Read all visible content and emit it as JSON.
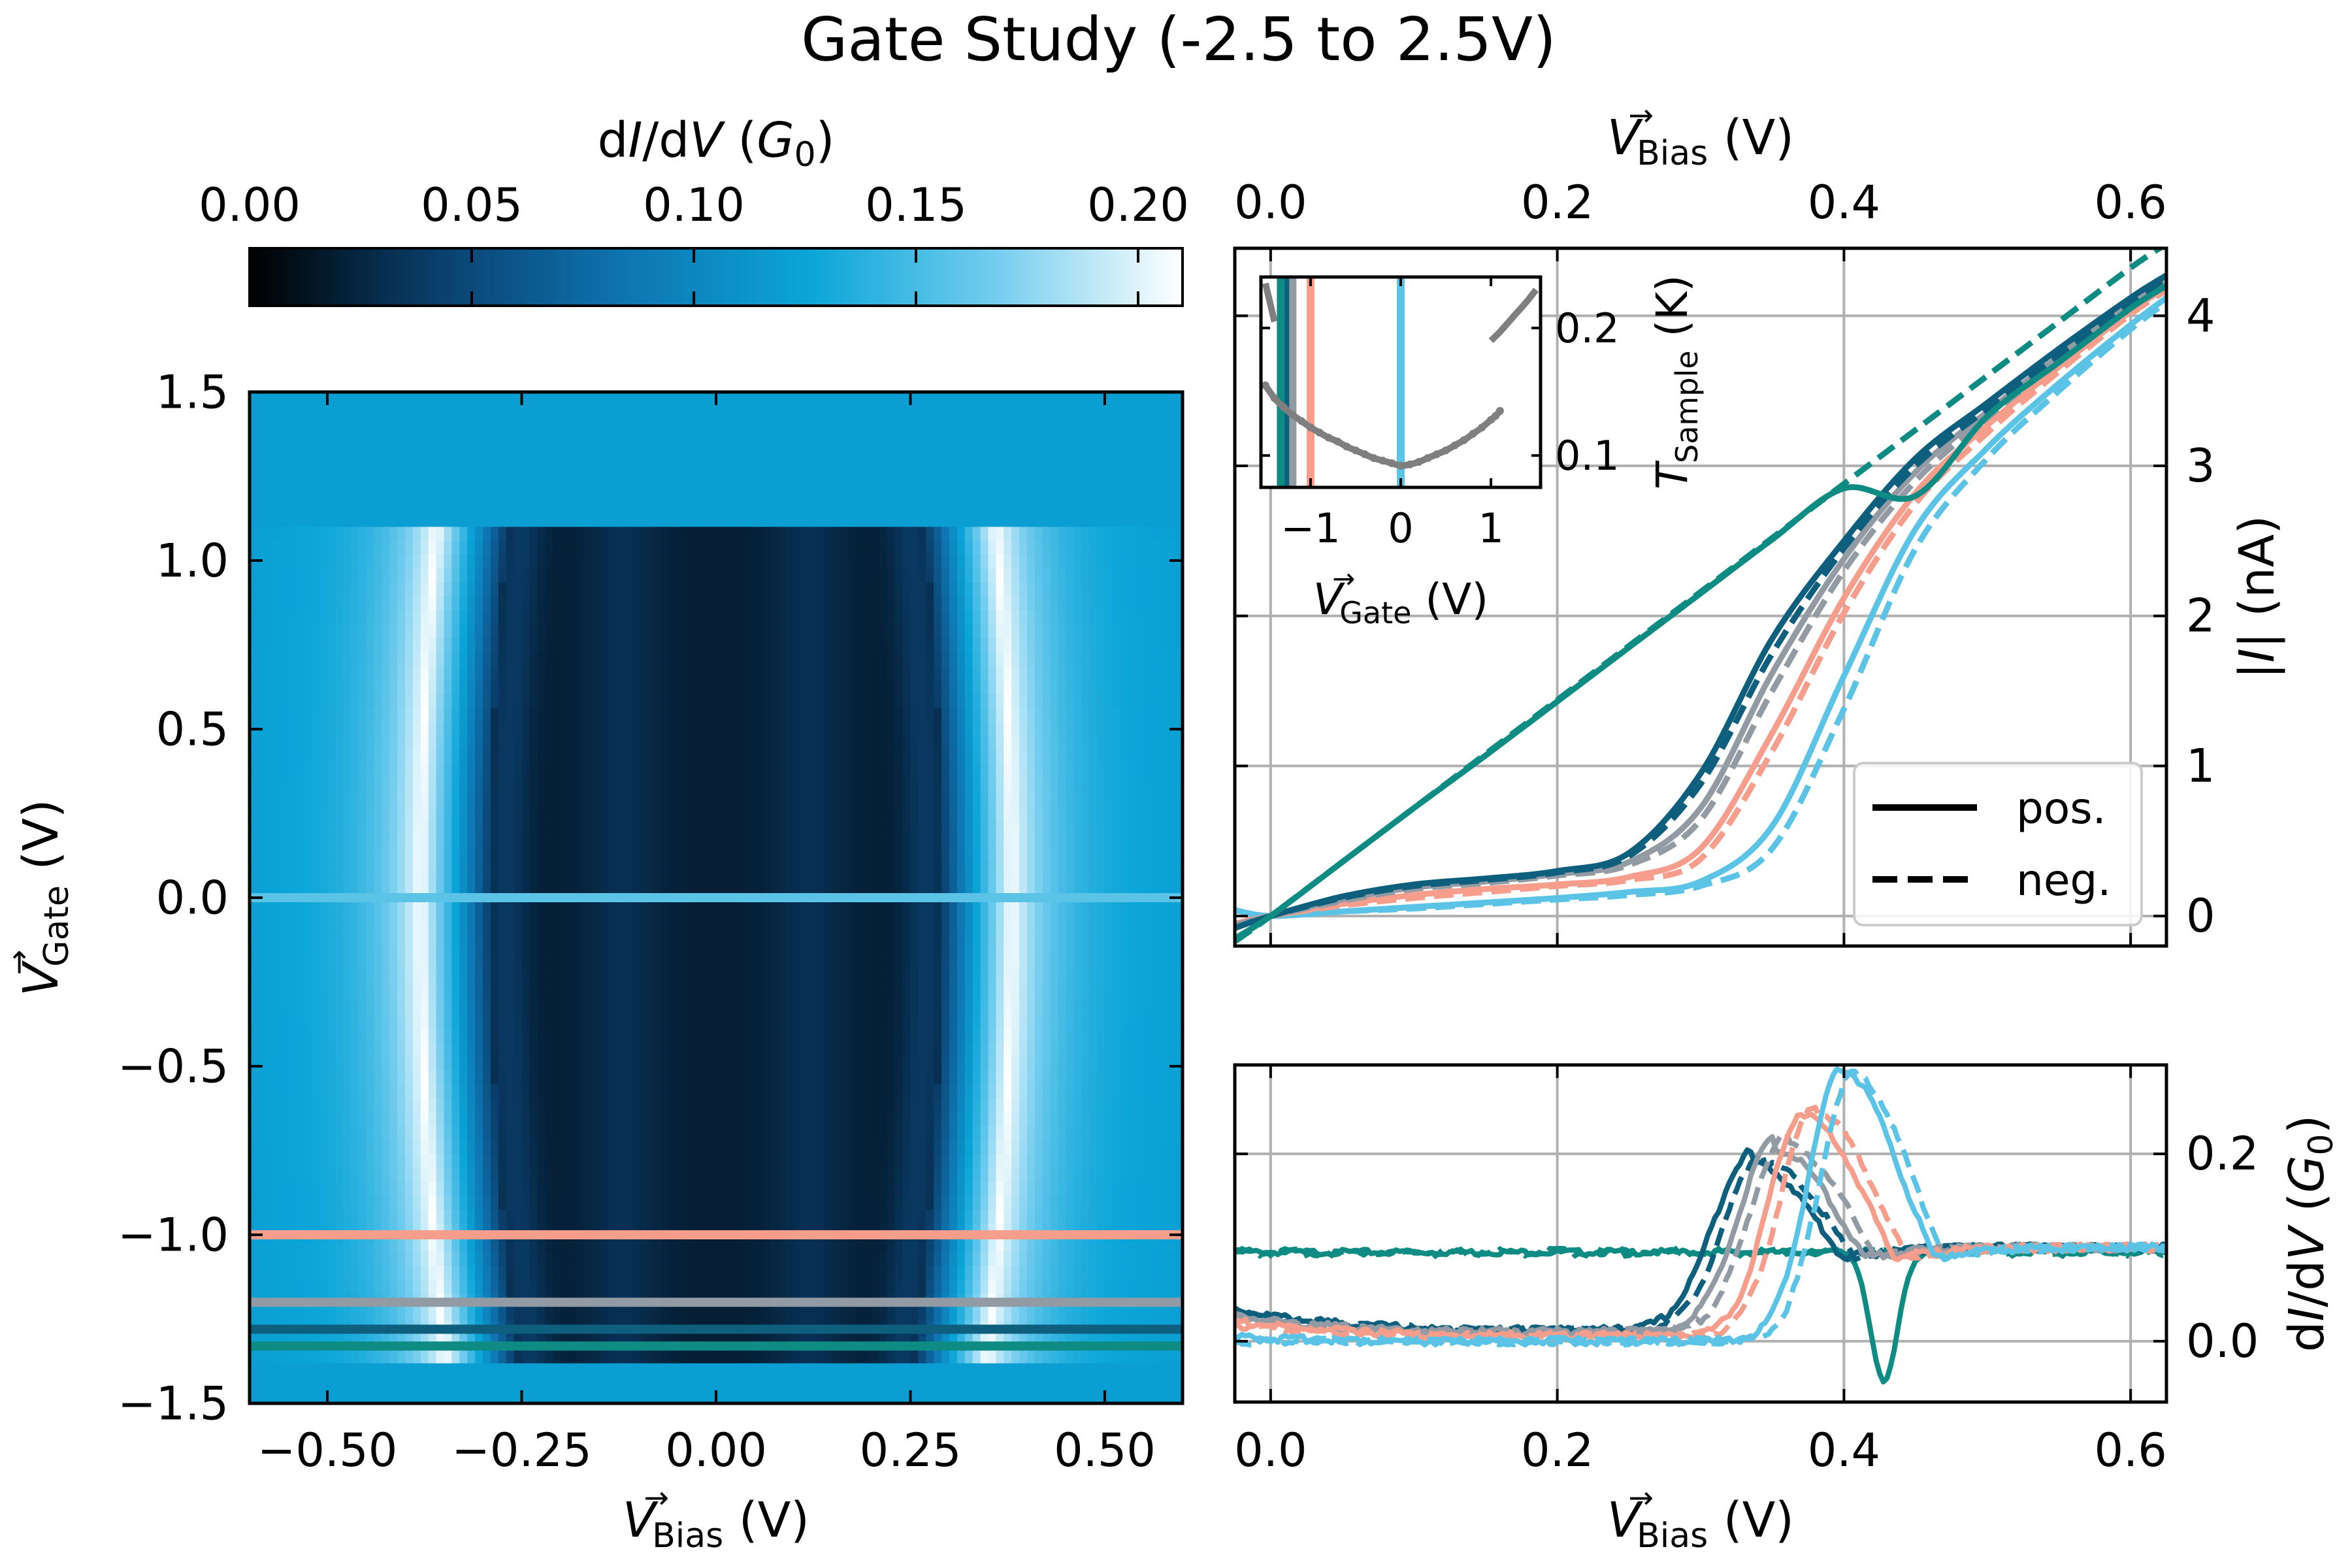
{
  "figure": {
    "title": "Gate Study (-2.5 to 2.5V)"
  },
  "colors": {
    "teal": "#0e8c84",
    "dark_blue": "#0d5f7d",
    "gray": "#929aa3",
    "salmon": "#f79d8b",
    "light_blue": "#5bc3e6",
    "inset_gray": "#7f7f7f",
    "grid": "#b0b0b0"
  },
  "colorbar": {
    "label_math": {
      "d1": "d",
      "i1": "I",
      "s": "/d",
      "v": "V",
      "p1": " (",
      "g": "G",
      "sub": "0",
      "p2": ")"
    },
    "ticks": [
      "0.00",
      "0.05",
      "0.10",
      "0.15",
      "0.20"
    ],
    "range": [
      0,
      0.21
    ],
    "colormap": [
      "#000000",
      "#0a3f6c",
      "#0e74b0",
      "#0ba5d8",
      "#74cdee",
      "#ffffff"
    ]
  },
  "chart_data": [
    {
      "id": "heatmap",
      "type": "heatmap",
      "xlabel": {
        "v": "V",
        "arrow": "→",
        "sub": "Bias",
        "unit": " (V)"
      },
      "ylabel": {
        "v": "V",
        "arrow": "→",
        "sub": "Gate",
        "unit": " (V)"
      },
      "xlim": [
        -0.6,
        0.6
      ],
      "ylim": [
        -1.5,
        1.5
      ],
      "xticks": [
        {
          "v": -0.5,
          "label": "−0.50"
        },
        {
          "v": -0.25,
          "label": "−0.25"
        },
        {
          "v": 0,
          "label": "0.00"
        },
        {
          "v": 0.25,
          "label": "0.25"
        },
        {
          "v": 0.5,
          "label": "0.50"
        }
      ],
      "yticks": [
        {
          "v": -1.5,
          "label": "−1.5"
        },
        {
          "v": -1.0,
          "label": "−1.0"
        },
        {
          "v": -0.5,
          "label": "−0.5"
        },
        {
          "v": 0.0,
          "label": "0.0"
        },
        {
          "v": 0.5,
          "label": "0.5"
        },
        {
          "v": 1.0,
          "label": "1.0"
        },
        {
          "v": 1.5,
          "label": "1.5"
        }
      ],
      "gate_data_top": 1.1,
      "background_value": 0.12,
      "gap_inner_value": 0.02,
      "peak_value": 0.21,
      "gap_half_width_at_zero_gate": 0.34,
      "gate_cuts": [
        {
          "gate": 0.0,
          "color": "light_blue"
        },
        {
          "gate": -1.0,
          "color": "salmon"
        },
        {
          "gate": -1.2,
          "color": "gray"
        },
        {
          "gate": -1.28,
          "color": "dark_blue"
        },
        {
          "gate": -1.33,
          "color": "teal"
        }
      ]
    },
    {
      "id": "iv",
      "type": "line",
      "x_top_label": {
        "v": "V",
        "arrow": "→",
        "sub": "Bias",
        "unit": " (V)"
      },
      "ylabel": {
        "pre": "|",
        "i": "I",
        "post": "| (nA)"
      },
      "xlim": [
        -0.025,
        0.625
      ],
      "ylim": [
        -0.2,
        4.45
      ],
      "xticks": [
        {
          "v": 0.0,
          "label": "0.0"
        },
        {
          "v": 0.2,
          "label": "0.2"
        },
        {
          "v": 0.4,
          "label": "0.4"
        },
        {
          "v": 0.6,
          "label": "0.6"
        }
      ],
      "yticks": [
        {
          "v": 0,
          "label": "0"
        },
        {
          "v": 1,
          "label": "1"
        },
        {
          "v": 2,
          "label": "2"
        },
        {
          "v": 3,
          "label": "3"
        },
        {
          "v": 4,
          "label": "4"
        }
      ],
      "legend": {
        "placement": "lower right",
        "entries": [
          "pos.",
          "neg."
        ]
      },
      "x": [
        -0.025,
        0.0,
        0.05,
        0.1,
        0.15,
        0.2,
        0.25,
        0.3,
        0.35,
        0.4,
        0.45,
        0.5,
        0.55,
        0.6,
        0.625
      ],
      "series": [
        {
          "color": "teal",
          "dash": false,
          "y": [
            -0.15,
            0.0,
            0.36,
            0.72,
            1.07,
            1.43,
            1.79,
            2.15,
            2.51,
            2.85,
            2.8,
            3.33,
            3.69,
            4.05,
            4.2
          ]
        },
        {
          "color": "teal",
          "dash": true,
          "y": [
            -0.17,
            0.0,
            0.36,
            0.72,
            1.08,
            1.44,
            1.8,
            2.16,
            2.52,
            2.88,
            3.24,
            3.6,
            3.96,
            4.32,
            4.48
          ]
        },
        {
          "color": "dark_blue",
          "dash": false,
          "y": [
            -0.08,
            0.0,
            0.13,
            0.21,
            0.25,
            0.3,
            0.42,
            0.95,
            1.85,
            2.5,
            3.05,
            3.42,
            3.78,
            4.12,
            4.27
          ]
        },
        {
          "color": "dark_blue",
          "dash": true,
          "y": [
            -0.08,
            0.0,
            0.12,
            0.2,
            0.24,
            0.29,
            0.4,
            0.88,
            1.75,
            2.45,
            3.0,
            3.38,
            3.74,
            4.09,
            4.25
          ]
        },
        {
          "color": "gray",
          "dash": false,
          "y": [
            -0.06,
            0.0,
            0.11,
            0.19,
            0.23,
            0.28,
            0.36,
            0.72,
            1.62,
            2.38,
            2.96,
            3.36,
            3.73,
            4.08,
            4.24
          ]
        },
        {
          "color": "gray",
          "dash": true,
          "y": [
            -0.06,
            0.0,
            0.1,
            0.18,
            0.22,
            0.27,
            0.34,
            0.64,
            1.5,
            2.3,
            2.9,
            3.32,
            3.7,
            4.06,
            4.22
          ]
        },
        {
          "color": "salmon",
          "dash": false,
          "y": [
            -0.05,
            0.0,
            0.08,
            0.14,
            0.18,
            0.21,
            0.26,
            0.45,
            1.22,
            2.12,
            2.82,
            3.27,
            3.66,
            4.03,
            4.19
          ]
        },
        {
          "color": "salmon",
          "dash": true,
          "y": [
            -0.05,
            0.0,
            0.07,
            0.12,
            0.16,
            0.2,
            0.24,
            0.38,
            1.1,
            2.02,
            2.75,
            3.22,
            3.63,
            4.01,
            4.17
          ]
        },
        {
          "color": "light_blue",
          "dash": false,
          "y": [
            0.04,
            0.0,
            0.03,
            0.06,
            0.09,
            0.12,
            0.16,
            0.23,
            0.6,
            1.6,
            2.58,
            3.12,
            3.55,
            3.94,
            4.12
          ]
        },
        {
          "color": "light_blue",
          "dash": true,
          "y": [
            0.04,
            0.0,
            0.03,
            0.05,
            0.08,
            0.11,
            0.14,
            0.2,
            0.45,
            1.38,
            2.45,
            3.05,
            3.5,
            3.91,
            4.09
          ]
        }
      ]
    },
    {
      "id": "inset",
      "type": "scatter",
      "xlabel": {
        "v": "V",
        "arrow": "→",
        "sub": "Gate",
        "unit": " (V)"
      },
      "ylabel": {
        "t": "T",
        "sub": "Sample",
        "unit": " (K)"
      },
      "xlim": [
        -1.55,
        1.55
      ],
      "ylim": [
        0.075,
        0.24
      ],
      "xticks": [
        {
          "v": -1,
          "label": "−1"
        },
        {
          "v": 0,
          "label": "0"
        },
        {
          "v": 1,
          "label": "1"
        }
      ],
      "yticks": [
        {
          "v": 0.1,
          "label": "0.1"
        },
        {
          "v": 0.2,
          "label": "0.2"
        }
      ],
      "gate_markers": [
        {
          "x": 0.0,
          "color": "light_blue"
        },
        {
          "x": -1.0,
          "color": "salmon"
        },
        {
          "x": -1.2,
          "color": "gray"
        },
        {
          "x": -1.28,
          "color": "dark_blue"
        },
        {
          "x": -1.33,
          "color": "teal"
        }
      ],
      "points_x": [
        -1.5,
        -1.4,
        -1.3,
        -1.2,
        -1.1,
        -1.0,
        -0.9,
        -0.8,
        -0.7,
        -0.6,
        -0.5,
        -0.4,
        -0.3,
        -0.2,
        -0.1,
        0.0,
        0.1,
        0.2,
        0.3,
        0.4,
        0.5,
        0.6,
        0.7,
        0.8,
        0.9,
        1.0,
        1.05,
        1.1
      ],
      "points_y": [
        0.155,
        0.145,
        0.138,
        0.132,
        0.127,
        0.122,
        0.118,
        0.114,
        0.111,
        0.107,
        0.104,
        0.101,
        0.098,
        0.096,
        0.094,
        0.092,
        0.093,
        0.095,
        0.098,
        0.101,
        0.104,
        0.108,
        0.112,
        0.117,
        0.122,
        0.128,
        0.131,
        0.135
      ],
      "branch_top_right": {
        "x": [
          1.0,
          1.1,
          1.2,
          1.3,
          1.4,
          1.5
        ],
        "y": [
          0.19,
          0.197,
          0.205,
          0.213,
          0.221,
          0.23
        ]
      },
      "branch_top_left": {
        "x": [
          -1.5,
          -1.45,
          -1.4
        ],
        "y": [
          0.235,
          0.22,
          0.205
        ]
      }
    },
    {
      "id": "didv",
      "type": "line",
      "xlabel": {
        "v": "V",
        "arrow": "→",
        "sub": "Bias",
        "unit": " (V)"
      },
      "ylabel": {
        "d1": "d",
        "i1": "I",
        "s": "/d",
        "v": "V",
        "p1": " (",
        "g": "G",
        "sub": "0",
        "p2": ")"
      },
      "xlim": [
        -0.025,
        0.625
      ],
      "ylim": [
        -0.065,
        0.295
      ],
      "xticks": [
        {
          "v": 0.0,
          "label": "0.0"
        },
        {
          "v": 0.2,
          "label": "0.2"
        },
        {
          "v": 0.4,
          "label": "0.4"
        },
        {
          "v": 0.6,
          "label": "0.6"
        }
      ],
      "yticks": [
        {
          "v": 0.0,
          "label": "0.0"
        },
        {
          "v": 0.2,
          "label": "0.2"
        }
      ],
      "peaks": [
        {
          "color": "teal",
          "kind": "flat",
          "base": 0.095,
          "dip_x": 0.428,
          "dip_w": 0.013,
          "dip_depth": 0.14
        },
        {
          "color": "dark_blue",
          "dash": false,
          "center": 0.336,
          "amp": 0.19,
          "width_left": 0.038,
          "width_right": 0.072,
          "tail": 0.1,
          "low": 0.012,
          "start": 0.035
        },
        {
          "color": "dark_blue",
          "dash": true,
          "center": 0.344,
          "amp": 0.19,
          "width_left": 0.038,
          "width_right": 0.072,
          "tail": 0.1,
          "low": 0.012,
          "start": 0.03
        },
        {
          "color": "gray",
          "dash": false,
          "center": 0.352,
          "amp": 0.205,
          "width_left": 0.036,
          "width_right": 0.068,
          "tail": 0.1,
          "low": 0.01,
          "start": 0.028
        },
        {
          "color": "gray",
          "dash": true,
          "center": 0.36,
          "amp": 0.21,
          "width_left": 0.036,
          "width_right": 0.068,
          "tail": 0.1,
          "low": 0.01,
          "start": 0.025
        },
        {
          "color": "salmon",
          "dash": false,
          "center": 0.372,
          "amp": 0.24,
          "width_left": 0.034,
          "width_right": 0.064,
          "tail": 0.1,
          "low": 0.006,
          "start": 0.022
        },
        {
          "color": "salmon",
          "dash": true,
          "center": 0.38,
          "amp": 0.245,
          "width_left": 0.034,
          "width_right": 0.064,
          "tail": 0.1,
          "low": 0.006,
          "start": 0.018
        },
        {
          "color": "light_blue",
          "dash": false,
          "center": 0.398,
          "amp": 0.29,
          "width_left": 0.032,
          "width_right": 0.06,
          "tail": 0.1,
          "low": 0.0,
          "start": 0.004
        },
        {
          "color": "light_blue",
          "dash": true,
          "center": 0.406,
          "amp": 0.285,
          "width_left": 0.032,
          "width_right": 0.06,
          "tail": 0.1,
          "low": 0.0,
          "start": 0.0
        }
      ]
    }
  ]
}
